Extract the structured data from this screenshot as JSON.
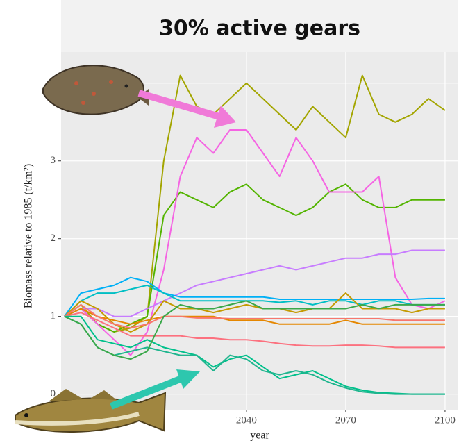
{
  "chart_data": {
    "type": "line",
    "title": "30% active gears",
    "ylabel": "Biomass relative to 1985 (t/km²)",
    "xlabel": "year",
    "x": [
      1985,
      1990,
      1995,
      2000,
      2005,
      2010,
      2015,
      2020,
      2025,
      2030,
      2035,
      2040,
      2045,
      2050,
      2055,
      2060,
      2065,
      2070,
      2075,
      2080,
      2085,
      2090,
      2095,
      2100
    ],
    "xlim": [
      1984,
      2104
    ],
    "xticks": [
      2040,
      2070,
      2100
    ],
    "ylim": [
      -0.2,
      4.4
    ],
    "yticks": [
      0,
      1,
      2,
      3,
      4
    ],
    "grid": true,
    "series": [
      {
        "color": "#a3a500",
        "values": [
          1.0,
          1.15,
          0.9,
          0.8,
          0.85,
          1.0,
          3.0,
          4.1,
          3.7,
          3.6,
          3.8,
          4.0,
          3.8,
          3.6,
          3.4,
          3.7,
          3.5,
          3.3,
          4.1,
          3.6,
          3.5,
          3.6,
          3.8,
          3.65
        ]
      },
      {
        "color": "#53b400",
        "values": [
          1.0,
          1.1,
          0.9,
          0.8,
          0.9,
          1.0,
          2.3,
          2.6,
          2.5,
          2.4,
          2.6,
          2.7,
          2.5,
          2.4,
          2.3,
          2.4,
          2.6,
          2.7,
          2.5,
          2.4,
          2.4,
          2.5,
          2.5,
          2.5
        ]
      },
      {
        "color": "#f564e3",
        "values": [
          1.0,
          1.1,
          0.9,
          0.7,
          0.5,
          0.8,
          1.6,
          2.8,
          3.3,
          3.1,
          3.4,
          3.4,
          3.1,
          2.8,
          3.3,
          3.0,
          2.6,
          2.6,
          2.6,
          2.8,
          1.5,
          1.15,
          1.1,
          1.2
        ]
      },
      {
        "color": "#c77cff",
        "values": [
          1.0,
          1.1,
          1.1,
          1.0,
          1.0,
          1.1,
          1.2,
          1.3,
          1.4,
          1.45,
          1.5,
          1.55,
          1.6,
          1.65,
          1.6,
          1.65,
          1.7,
          1.75,
          1.75,
          1.8,
          1.8,
          1.85,
          1.85,
          1.85
        ]
      },
      {
        "color": "#00b0f6",
        "values": [
          1.0,
          1.3,
          1.35,
          1.4,
          1.5,
          1.45,
          1.3,
          1.25,
          1.25,
          1.25,
          1.25,
          1.25,
          1.25,
          1.22,
          1.22,
          1.22,
          1.22,
          1.22,
          1.22,
          1.22,
          1.22,
          1.22,
          1.23,
          1.23
        ]
      },
      {
        "color": "#00bfc4",
        "values": [
          1.0,
          1.2,
          1.3,
          1.3,
          1.35,
          1.4,
          1.3,
          1.2,
          1.2,
          1.2,
          1.2,
          1.2,
          1.2,
          1.18,
          1.2,
          1.15,
          1.2,
          1.2,
          1.15,
          1.2,
          1.2,
          1.15,
          1.15,
          1.15
        ]
      },
      {
        "color": "#c49a00",
        "values": [
          1.0,
          1.2,
          1.1,
          0.9,
          0.8,
          0.9,
          1.2,
          1.1,
          1.1,
          1.05,
          1.1,
          1.15,
          1.1,
          1.1,
          1.05,
          1.1,
          1.1,
          1.3,
          1.1,
          1.1,
          1.1,
          1.05,
          1.1,
          1.1
        ]
      },
      {
        "color": "#e58700",
        "values": [
          1.0,
          1.1,
          1.0,
          0.95,
          0.9,
          0.95,
          1.0,
          1.0,
          1.0,
          1.0,
          0.95,
          0.95,
          0.95,
          0.9,
          0.9,
          0.9,
          0.9,
          0.95,
          0.9,
          0.9,
          0.9,
          0.9,
          0.9,
          0.9
        ]
      },
      {
        "color": "#f8766d",
        "values": [
          1.0,
          1.15,
          1.0,
          0.9,
          0.85,
          0.9,
          1.0,
          1.0,
          0.98,
          0.98,
          0.97,
          0.97,
          0.97,
          0.97,
          0.97,
          0.97,
          0.97,
          0.97,
          0.97,
          0.97,
          0.95,
          0.95,
          0.95,
          0.95
        ]
      },
      {
        "color": "#fc717f",
        "values": [
          1.0,
          1.05,
          0.95,
          0.85,
          0.75,
          0.75,
          0.75,
          0.75,
          0.72,
          0.72,
          0.7,
          0.7,
          0.68,
          0.65,
          0.63,
          0.62,
          0.62,
          0.63,
          0.63,
          0.62,
          0.6,
          0.6,
          0.6,
          0.6
        ]
      },
      {
        "color": "#00c08b",
        "values": [
          1.0,
          1.0,
          0.7,
          0.65,
          0.6,
          0.7,
          0.6,
          0.55,
          0.5,
          0.35,
          0.45,
          0.5,
          0.35,
          0.2,
          0.25,
          0.3,
          0.2,
          0.1,
          0.05,
          0.02,
          0.01,
          0.0,
          0.0,
          0.0
        ]
      },
      {
        "color": "#1fb58e",
        "values": [
          1.0,
          0.9,
          0.6,
          0.5,
          0.55,
          0.6,
          0.55,
          0.5,
          0.5,
          0.3,
          0.5,
          0.45,
          0.3,
          0.25,
          0.3,
          0.25,
          0.15,
          0.08,
          0.03,
          0.01,
          0.0,
          0.0,
          0.0,
          0.0
        ]
      },
      {
        "color": "#3aa84a",
        "values": [
          1.0,
          0.9,
          0.6,
          0.5,
          0.45,
          0.55,
          1.0,
          1.15,
          1.1,
          1.1,
          1.15,
          1.2,
          1.1,
          1.1,
          1.1,
          1.1,
          1.1,
          1.1,
          1.15,
          1.1,
          1.15,
          1.15,
          1.15,
          1.15
        ]
      }
    ]
  }
}
